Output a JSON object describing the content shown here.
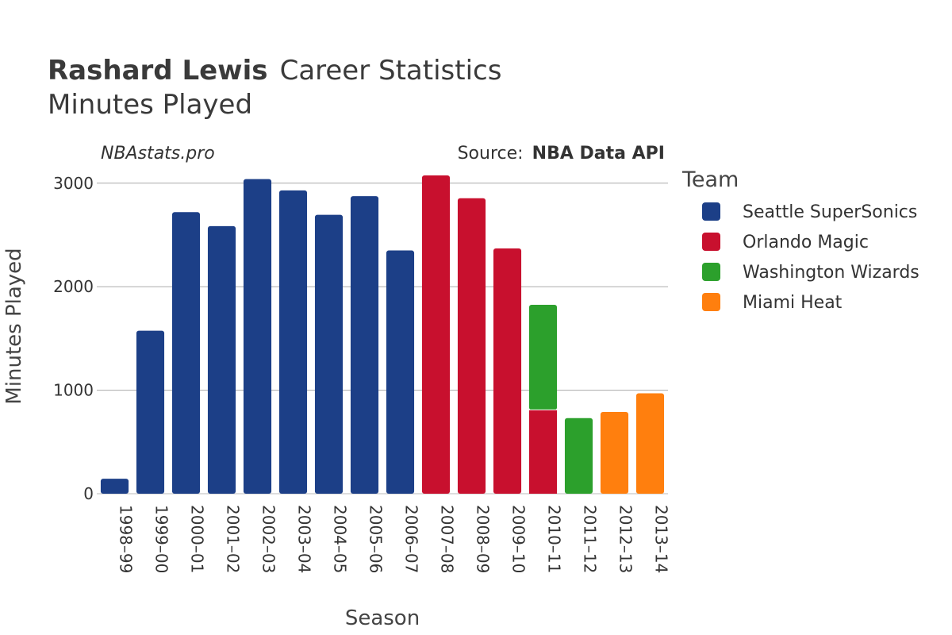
{
  "header": {
    "title_bold": "Rashard Lewis",
    "title_rest": "Career Statistics",
    "subtitle": "Minutes Played"
  },
  "watermark": "NBAstats.pro",
  "source": {
    "label": "Source:",
    "value": "NBA Data API"
  },
  "chart_data": {
    "type": "bar",
    "stacked": true,
    "xlabel": "Season",
    "ylabel": "Minutes Played",
    "ylim": [
      0,
      3400
    ],
    "yticks": [
      0,
      1000,
      2000,
      3000
    ],
    "grid": true,
    "legend_position": "right",
    "legend_title": "Team",
    "categories": [
      "1998–99",
      "1999–00",
      "2000–01",
      "2001–02",
      "2002–03",
      "2003–04",
      "2004–05",
      "2005–06",
      "2006–07",
      "2007–08",
      "2008–09",
      "2009–10",
      "2010–11",
      "2011–12",
      "2012–13",
      "2013–14"
    ],
    "series": [
      {
        "name": "Seattle SuperSonics",
        "color": "#1c3f87",
        "values": [
          145,
          1575,
          2720,
          2585,
          3040,
          2930,
          2695,
          2875,
          2350,
          0,
          0,
          0,
          0,
          0,
          0,
          0
        ]
      },
      {
        "name": "Orlando Magic",
        "color": "#c8102e",
        "values": [
          0,
          0,
          0,
          0,
          0,
          0,
          0,
          0,
          0,
          3075,
          2855,
          2370,
          810,
          0,
          0,
          0
        ]
      },
      {
        "name": "Washington Wizards",
        "color": "#2ca02c",
        "values": [
          0,
          0,
          0,
          0,
          0,
          0,
          0,
          0,
          0,
          0,
          0,
          0,
          1015,
          730,
          0,
          0
        ]
      },
      {
        "name": "Miami Heat",
        "color": "#ff7f0e",
        "values": [
          0,
          0,
          0,
          0,
          0,
          0,
          0,
          0,
          0,
          0,
          0,
          0,
          0,
          0,
          790,
          970
        ]
      }
    ]
  }
}
